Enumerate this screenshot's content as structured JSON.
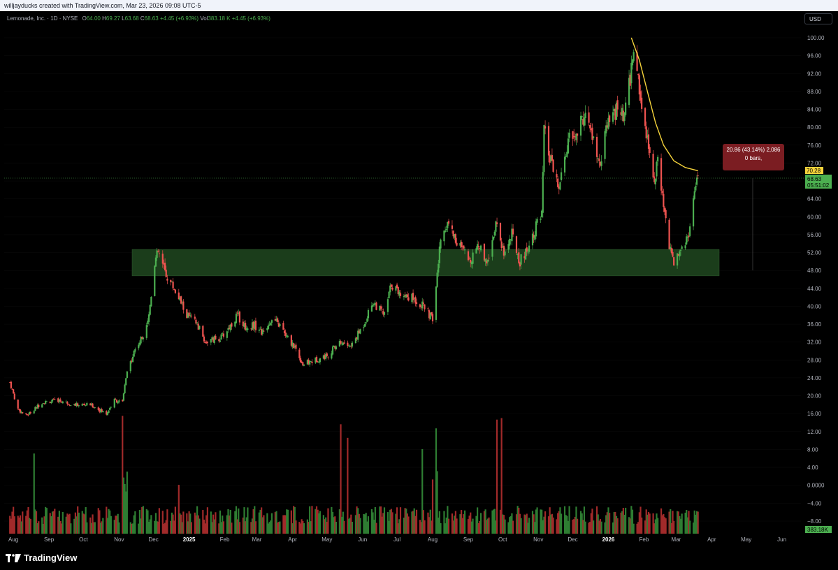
{
  "header": {
    "attribution": "willjayducks created with TradingView.com, Mar 23, 2026 09:08 UTC-5"
  },
  "legend": {
    "name": "Lemonade, Inc. · 1D · NYSE",
    "o_label": "O",
    "o": "64.00",
    "h_label": "H",
    "h": "69.27",
    "l_label": "L",
    "l": "63.68",
    "c_label": "C",
    "c": "68.63",
    "change": "+4.45 (+6.93%)",
    "vol_label": "Vol",
    "vol": "383.18 K",
    "vol_change": "+4.45 (+6.93%)"
  },
  "currency_button": "USD",
  "measure_box": {
    "line1": "20.86 (43.14%) 2,086",
    "line2": "0 bars,"
  },
  "price_labels": {
    "yellow_tag": "70.28",
    "last_price": "68.63",
    "countdown": "05:51:02",
    "volume_tag": "383.18K"
  },
  "brand": "TradingView",
  "colors": {
    "up": "#26a69a",
    "green_candle": "#4caf50",
    "down": "#ef5350",
    "zone": "#1b3d1b",
    "yellow": "#f5d33b",
    "measure": "#7b1d22"
  },
  "chart_data": {
    "type": "candlestick",
    "symbol": "Lemonade, Inc.",
    "interval": "1D",
    "exchange": "NYSE",
    "y_ticks": [
      "100.00",
      "96.00",
      "92.00",
      "88.00",
      "84.00",
      "80.00",
      "76.00",
      "72.00",
      "68.00",
      "64.00",
      "60.00",
      "56.00",
      "52.00",
      "48.00",
      "44.00",
      "40.00",
      "36.00",
      "32.00",
      "28.00",
      "24.00",
      "20.00",
      "16.00",
      "12.00",
      "8.00",
      "4.00",
      "0.0000",
      "−4.00",
      "−8.00"
    ],
    "x_ticks": [
      "Aug",
      "Sep",
      "Oct",
      "Nov",
      "Dec",
      "2025",
      "Feb",
      "Mar",
      "Apr",
      "May",
      "Jun",
      "Jul",
      "Aug",
      "Sep",
      "Oct",
      "Nov",
      "Dec",
      "2026",
      "Feb",
      "Mar",
      "Apr",
      "May",
      "Jun"
    ],
    "ylim": [
      -8,
      100
    ],
    "support_zone": [
      46.8,
      52.7
    ],
    "last_price": 68.63,
    "price_path": [
      [
        "2024-07-29",
        23
      ],
      [
        "2024-08-05",
        17
      ],
      [
        "2024-08-12",
        15.5
      ],
      [
        "2024-08-26",
        18.5
      ],
      [
        "2024-09-09",
        19
      ],
      [
        "2024-09-23",
        18
      ],
      [
        "2024-10-07",
        18
      ],
      [
        "2024-10-21",
        16
      ],
      [
        "2024-10-28",
        19
      ],
      [
        "2024-11-04",
        18.5
      ],
      [
        "2024-11-07",
        24
      ],
      [
        "2024-11-14",
        30
      ],
      [
        "2024-11-21",
        33
      ],
      [
        "2024-11-27",
        38
      ],
      [
        "2024-12-02",
        50
      ],
      [
        "2024-12-05",
        52
      ],
      [
        "2024-12-12",
        47
      ],
      [
        "2024-12-19",
        44
      ],
      [
        "2024-12-30",
        38
      ],
      [
        "2025-01-08",
        36
      ],
      [
        "2025-01-15",
        32
      ],
      [
        "2025-01-29",
        33
      ],
      [
        "2025-02-07",
        36
      ],
      [
        "2025-02-12",
        38
      ],
      [
        "2025-02-20",
        35
      ],
      [
        "2025-02-26",
        36
      ],
      [
        "2025-03-06",
        34
      ],
      [
        "2025-03-13",
        37
      ],
      [
        "2025-03-20",
        36
      ],
      [
        "2025-03-27",
        33
      ],
      [
        "2025-04-03",
        31
      ],
      [
        "2025-04-10",
        27
      ],
      [
        "2025-04-21",
        28
      ],
      [
        "2025-05-01",
        29
      ],
      [
        "2025-05-12",
        32
      ],
      [
        "2025-05-22",
        31
      ],
      [
        "2025-06-02",
        36
      ],
      [
        "2025-06-10",
        41
      ],
      [
        "2025-06-20",
        38
      ],
      [
        "2025-06-26",
        45
      ],
      [
        "2025-07-03",
        43
      ],
      [
        "2025-07-14",
        42
      ],
      [
        "2025-07-24",
        40
      ],
      [
        "2025-08-01",
        37
      ],
      [
        "2025-08-05",
        47
      ],
      [
        "2025-08-08",
        55
      ],
      [
        "2025-08-14",
        59
      ],
      [
        "2025-08-21",
        55
      ],
      [
        "2025-09-02",
        50
      ],
      [
        "2025-09-09",
        54
      ],
      [
        "2025-09-18",
        50
      ],
      [
        "2025-09-25",
        59
      ],
      [
        "2025-10-02",
        52
      ],
      [
        "2025-10-09",
        56
      ],
      [
        "2025-10-16",
        50
      ],
      [
        "2025-10-23",
        53
      ],
      [
        "2025-10-30",
        58
      ],
      [
        "2025-11-04",
        60
      ],
      [
        "2025-11-06",
        79
      ],
      [
        "2025-11-12",
        72
      ],
      [
        "2025-11-19",
        66
      ],
      [
        "2025-11-27",
        77
      ],
      [
        "2025-12-04",
        78
      ],
      [
        "2025-12-11",
        83
      ],
      [
        "2025-12-18",
        78
      ],
      [
        "2025-12-24",
        71
      ],
      [
        "2025-12-31",
        80
      ],
      [
        "2026-01-08",
        84
      ],
      [
        "2026-01-15",
        82
      ],
      [
        "2026-01-21",
        93
      ],
      [
        "2026-01-23",
        98
      ],
      [
        "2026-01-28",
        88
      ],
      [
        "2026-02-04",
        78
      ],
      [
        "2026-02-09",
        68
      ],
      [
        "2026-02-13",
        72
      ],
      [
        "2026-02-18",
        62
      ],
      [
        "2026-02-24",
        52
      ],
      [
        "2026-02-27",
        50
      ],
      [
        "2026-03-04",
        53
      ],
      [
        "2026-03-11",
        55
      ],
      [
        "2026-03-16",
        63
      ],
      [
        "2026-03-20",
        68.63
      ]
    ],
    "moving_average_yellow": [
      [
        "2026-01-21",
        100
      ],
      [
        "2026-01-28",
        95
      ],
      [
        "2026-02-04",
        88
      ],
      [
        "2026-02-11",
        81
      ],
      [
        "2026-02-18",
        76
      ],
      [
        "2026-02-27",
        72.5
      ],
      [
        "2026-03-09",
        71
      ],
      [
        "2026-03-20",
        70.28
      ]
    ],
    "volume": "383.18K"
  }
}
